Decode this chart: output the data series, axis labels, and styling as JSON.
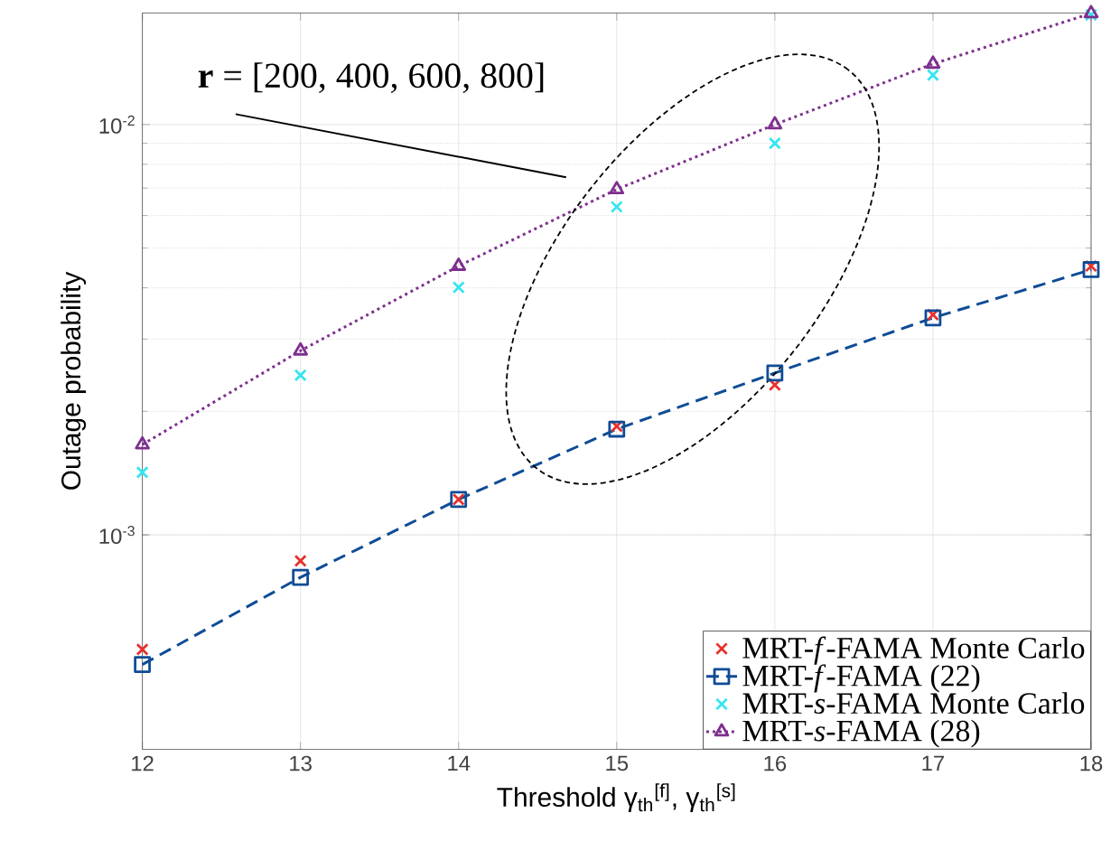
{
  "chart_data": {
    "type": "line",
    "xlabel": "Threshold γ$_{th}$$^{[f]}$, γ$_{th}$$^{[s]}$",
    "ylabel": "Outage probability",
    "annotations": [
      "**r** = [200, 400, 600, 800]"
    ],
    "x": [
      12,
      13,
      14,
      15,
      16,
      17,
      18
    ],
    "series": [
      {
        "name": "MRT-*f*-FAMA Monte Carlo",
        "type": "scatter",
        "marker": "cross",
        "color": "#e8302c",
        "values": [
          0.000526,
          0.000864,
          0.00122,
          0.00184,
          0.00232,
          0.00344,
          0.00452
        ]
      },
      {
        "name": "MRT-*f*-FAMA (22)",
        "marker": "square",
        "line_style": "dashed",
        "color": "#0f4c96",
        "values": [
          0.000483,
          0.000788,
          0.00122,
          0.00181,
          0.00248,
          0.00338,
          0.00443
        ]
      },
      {
        "name": "MRT-*s*-FAMA Monte Carlo",
        "type": "scatter",
        "marker": "cross",
        "color": "#33e6f0",
        "values": [
          0.00142,
          0.00245,
          0.00401,
          0.0063,
          0.009,
          0.0132,
          0.0185
        ]
      },
      {
        "name": "MRT-*s*-FAMA (28)",
        "marker": "triangle",
        "line_style": "dotted",
        "color": "#7e2f8e",
        "values": [
          0.00166,
          0.00281,
          0.00452,
          0.00695,
          0.01,
          0.01405,
          0.01866
        ]
      }
    ],
    "log": "y",
    "grid": true,
    "legend": "bottom right",
    "xlim": [
      12,
      18
    ],
    "xticks": [
      12,
      13,
      14,
      15,
      16,
      17,
      18
    ],
    "ylim": [
      0.0003,
      0.0187
    ],
    "yticks": [
      {
        "value": 0.001,
        "label": "10$^{-3}$"
      },
      {
        "value": 0.01,
        "label": "10$^{-2}$"
      }
    ]
  }
}
